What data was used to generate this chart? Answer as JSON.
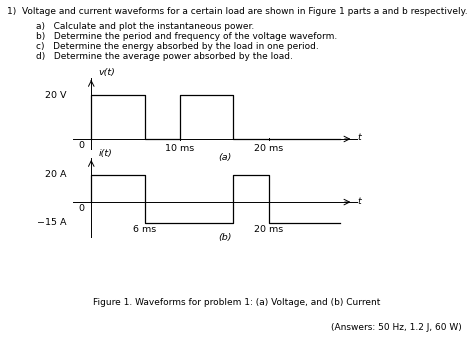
{
  "title_text": "1)  Voltage and current waveforms for a certain load are shown in Figure 1 parts a and b respectively.",
  "items": [
    "a)   Calculate and plot the instantaneous power.",
    "b)   Determine the period and frequency of the voltage waveform.",
    "c)   Determine the energy absorbed by the load in one period.",
    "d)   Determine the average power absorbed by the load."
  ],
  "fig_caption": "Figure 1. Waveforms for problem 1: (a) Voltage, and (b) Current",
  "answers": "(Answers: 50 Hz, 1.2 J, 60 W)",
  "voltage_waveform_x": [
    0,
    0,
    6,
    6,
    10,
    10,
    16,
    16,
    28
  ],
  "voltage_waveform_y": [
    0,
    20,
    20,
    0,
    0,
    20,
    20,
    0,
    0
  ],
  "current_waveform_x": [
    0,
    0,
    6,
    6,
    16,
    16,
    20,
    20,
    28
  ],
  "current_waveform_y": [
    0,
    20,
    20,
    -15,
    -15,
    20,
    20,
    -15,
    -15
  ],
  "background": "#ffffff",
  "line_color": "#000000",
  "fontsize_body": 6.5,
  "fontsize_axis": 6.8,
  "fontsize_caption": 6.5
}
